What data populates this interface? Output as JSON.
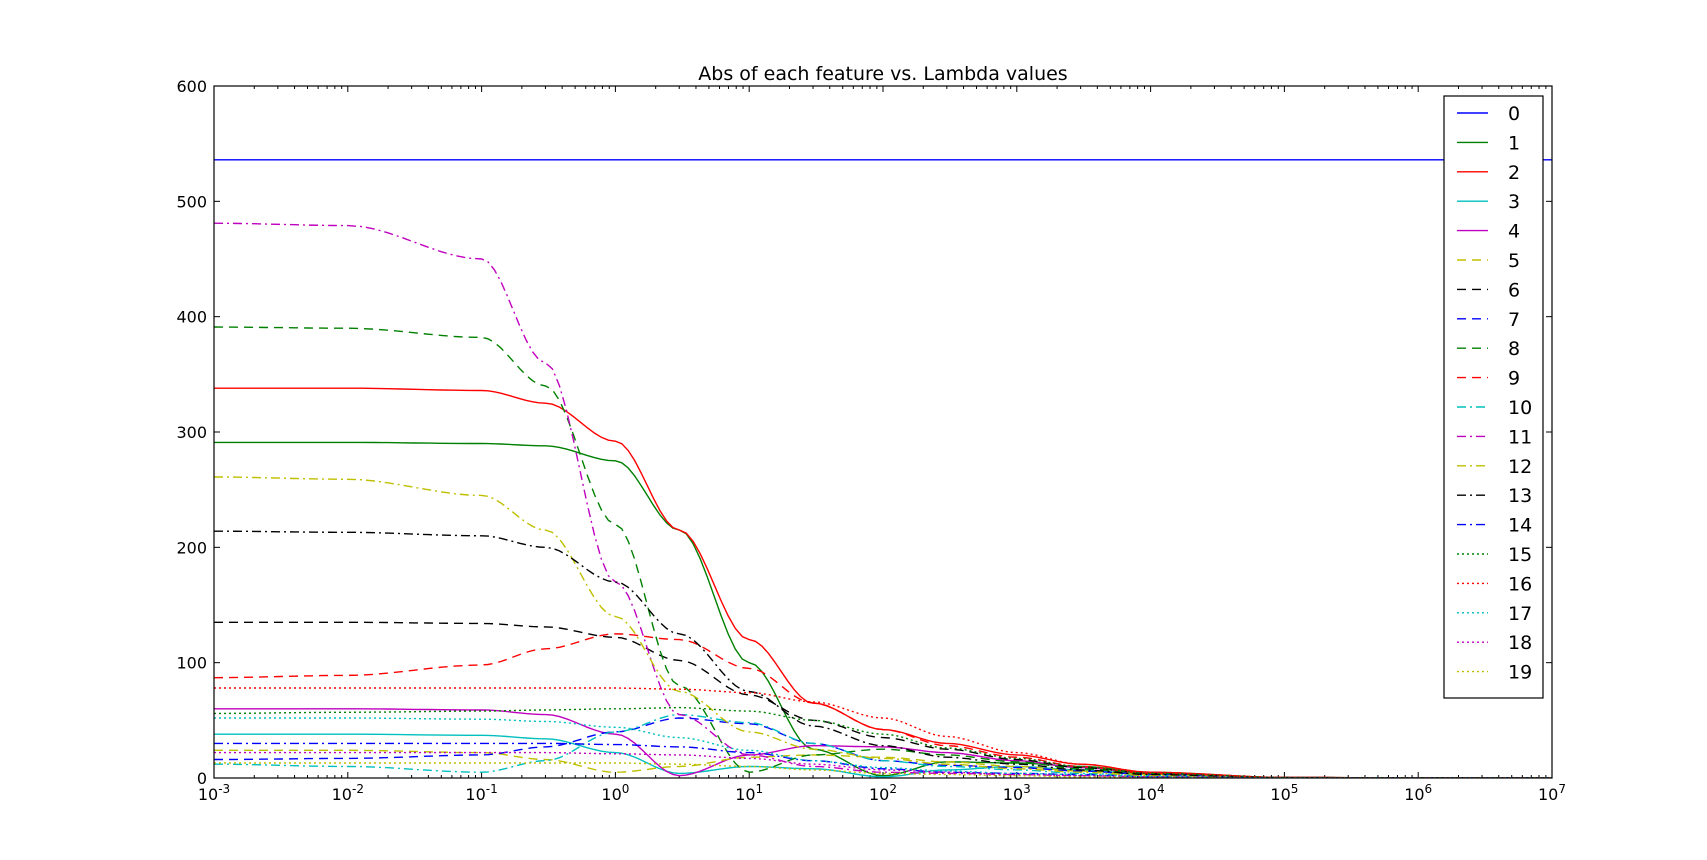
{
  "chart_data": {
    "type": "line",
    "title": "Abs of each feature vs. Lambda values",
    "xlabel": "",
    "ylabel": "",
    "xscale": "log",
    "xlim": [
      0.001,
      10000000
    ],
    "ylim": [
      0,
      600
    ],
    "x_ticks": [
      {
        "value": 0.001,
        "base": "10",
        "exp": "-3"
      },
      {
        "value": 0.01,
        "base": "10",
        "exp": "-2"
      },
      {
        "value": 0.1,
        "base": "10",
        "exp": "-1"
      },
      {
        "value": 1,
        "base": "10",
        "exp": "0"
      },
      {
        "value": 10,
        "base": "10",
        "exp": "1"
      },
      {
        "value": 100,
        "base": "10",
        "exp": "2"
      },
      {
        "value": 1000,
        "base": "10",
        "exp": "3"
      },
      {
        "value": 10000,
        "base": "10",
        "exp": "4"
      },
      {
        "value": 100000,
        "base": "10",
        "exp": "5"
      },
      {
        "value": 1000000,
        "base": "10",
        "exp": "6"
      },
      {
        "value": 10000000,
        "base": "10",
        "exp": "7"
      }
    ],
    "y_ticks": [
      0,
      100,
      200,
      300,
      400,
      500,
      600
    ],
    "y_tick_labels": [
      "0",
      "100",
      "200",
      "300",
      "400",
      "500",
      "600"
    ],
    "grid": false,
    "legend_position": "top-right",
    "x": [
      0.001,
      0.01,
      0.1,
      0.3,
      1,
      3,
      10,
      30,
      100,
      300,
      1000,
      3000,
      10000,
      100000,
      1000000,
      10000000
    ],
    "series": [
      {
        "name": "0",
        "color": "#0000ff",
        "style": "solid",
        "values": [
          536,
          536,
          536,
          536,
          536,
          536,
          536,
          536,
          536,
          536,
          536,
          536,
          536,
          536,
          536,
          536
        ]
      },
      {
        "name": "1",
        "color": "#008000",
        "style": "solid",
        "values": [
          291,
          291,
          290,
          288,
          275,
          215,
          100,
          25,
          2,
          14,
          13,
          10,
          5,
          0.5,
          0,
          0
        ]
      },
      {
        "name": "2",
        "color": "#ff0000",
        "style": "solid",
        "values": [
          338,
          338,
          336,
          325,
          292,
          215,
          120,
          65,
          42,
          30,
          20,
          12,
          5,
          0.5,
          0,
          0
        ]
      },
      {
        "name": "3",
        "color": "#00bfbf",
        "style": "solid",
        "values": [
          38,
          38,
          37,
          34,
          22,
          4,
          10,
          8,
          1,
          7,
          10,
          7,
          3,
          0.3,
          0,
          0
        ]
      },
      {
        "name": "4",
        "color": "#bf00bf",
        "style": "solid",
        "values": [
          60,
          60,
          59,
          55,
          38,
          2,
          20,
          28,
          27,
          22,
          15,
          9,
          4,
          0.4,
          0,
          0
        ]
      },
      {
        "name": "5",
        "color": "#bfbf00",
        "style": "dashed",
        "values": [
          24,
          24,
          22,
          16,
          5,
          10,
          18,
          20,
          18,
          14,
          10,
          6,
          3,
          0.3,
          0,
          0
        ]
      },
      {
        "name": "6",
        "color": "#000000",
        "style": "dashed",
        "values": [
          135,
          135,
          134,
          131,
          122,
          102,
          72,
          50,
          35,
          25,
          16,
          9,
          4,
          0.4,
          0,
          0
        ]
      },
      {
        "name": "7",
        "color": "#0000ff",
        "style": "dashed",
        "values": [
          16,
          17,
          20,
          27,
          40,
          52,
          47,
          30,
          15,
          11,
          9,
          6,
          3,
          0.3,
          0,
          0
        ]
      },
      {
        "name": "8",
        "color": "#008000",
        "style": "dashed",
        "values": [
          391,
          390,
          382,
          340,
          220,
          80,
          5,
          20,
          25,
          20,
          14,
          8,
          4,
          0.4,
          0,
          0
        ]
      },
      {
        "name": "9",
        "color": "#ff0000",
        "style": "dashed",
        "values": [
          87,
          89,
          98,
          112,
          125,
          120,
          95,
          65,
          42,
          28,
          18,
          10,
          4,
          0.4,
          0,
          0
        ]
      },
      {
        "name": "10",
        "color": "#00bfbf",
        "style": "dashdot",
        "values": [
          12,
          10,
          5,
          15,
          40,
          55,
          48,
          30,
          15,
          10,
          7,
          4,
          2,
          0.2,
          0,
          0
        ]
      },
      {
        "name": "11",
        "color": "#bf00bf",
        "style": "dashdot",
        "values": [
          481,
          479,
          450,
          360,
          170,
          55,
          20,
          10,
          5,
          4,
          3,
          2,
          1,
          0.1,
          0,
          0
        ]
      },
      {
        "name": "12",
        "color": "#bfbf00",
        "style": "dashdot",
        "values": [
          261,
          259,
          245,
          215,
          140,
          75,
          40,
          25,
          17,
          12,
          8,
          5,
          2,
          0.2,
          0,
          0
        ]
      },
      {
        "name": "13",
        "color": "#000000",
        "style": "dashdot",
        "values": [
          214,
          213,
          210,
          200,
          170,
          125,
          75,
          45,
          28,
          18,
          12,
          7,
          3,
          0.3,
          0,
          0
        ]
      },
      {
        "name": "14",
        "color": "#0000ff",
        "style": "dashdot",
        "values": [
          30,
          30,
          30,
          30,
          29,
          27,
          22,
          15,
          8,
          5,
          4,
          3,
          1,
          0.1,
          0,
          0
        ]
      },
      {
        "name": "15",
        "color": "#008000",
        "style": "dotted",
        "values": [
          56,
          57,
          58,
          59,
          60,
          61,
          58,
          50,
          38,
          26,
          17,
          10,
          4,
          0.4,
          0,
          0
        ]
      },
      {
        "name": "16",
        "color": "#ff0000",
        "style": "dotted",
        "values": [
          78,
          78,
          78,
          78,
          78,
          77,
          74,
          66,
          52,
          36,
          22,
          12,
          5,
          0.5,
          0,
          0
        ]
      },
      {
        "name": "17",
        "color": "#00bfbf",
        "style": "dotted",
        "values": [
          52,
          52,
          51,
          49,
          44,
          35,
          24,
          15,
          9,
          6,
          4,
          3,
          1,
          0.1,
          0,
          0
        ]
      },
      {
        "name": "18",
        "color": "#bf00bf",
        "style": "dotted",
        "values": [
          22,
          22,
          22,
          22,
          21,
          20,
          17,
          12,
          7,
          5,
          3,
          2,
          1,
          0.1,
          0,
          0
        ]
      },
      {
        "name": "19",
        "color": "#bfbf00",
        "style": "dotted",
        "values": [
          13,
          13,
          13,
          13,
          13,
          12,
          10,
          7,
          4,
          3,
          2,
          1,
          0.5,
          0.05,
          0,
          0
        ]
      }
    ]
  }
}
